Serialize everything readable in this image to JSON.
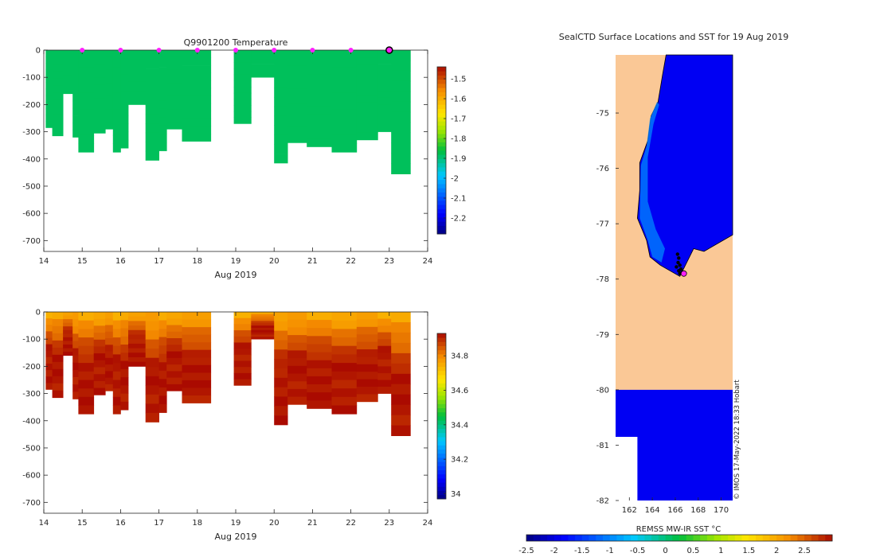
{
  "chart_data": [
    {
      "type": "heatmap",
      "panel": "temperature-section",
      "title": "Q9901200  Temperature",
      "xlabel": "Aug 2019",
      "ylabel": "",
      "xlim": [
        14,
        24
      ],
      "ylim": [
        -740,
        0
      ],
      "xticks": [
        14,
        15,
        16,
        17,
        18,
        19,
        20,
        21,
        22,
        23,
        24
      ],
      "yticks": [
        0,
        -100,
        -200,
        -300,
        -400,
        -500,
        -600,
        -700
      ],
      "ytick_labels": [
        "0",
        "-100",
        "-200",
        "-300",
        "-400",
        "-500",
        "-600",
        "-700"
      ],
      "colorbar": {
        "min": -2.28,
        "max": -1.44,
        "ticks": [
          -1.5,
          -1.6,
          -1.7,
          -1.8,
          -1.9,
          -2,
          -2.1,
          -2.2
        ],
        "tick_labels": [
          "-1.5",
          "-1.6",
          "-1.7",
          "-1.8",
          "-1.9",
          "-2",
          "-2.1",
          "-2.2"
        ]
      },
      "field_value": -1.88,
      "profiles": [
        {
          "x0": 14.05,
          "x1": 14.22,
          "top": 0,
          "bottom": -285
        },
        {
          "x0": 14.22,
          "x1": 14.5,
          "top": 0,
          "bottom": -315
        },
        {
          "x0": 14.5,
          "x1": 14.75,
          "top": 0,
          "bottom": -160
        },
        {
          "x0": 14.75,
          "x1": 14.9,
          "top": 0,
          "bottom": -320
        },
        {
          "x0": 14.9,
          "x1": 15.3,
          "top": 0,
          "bottom": -375
        },
        {
          "x0": 15.3,
          "x1": 15.6,
          "top": 0,
          "bottom": -305
        },
        {
          "x0": 15.6,
          "x1": 15.8,
          "top": 0,
          "bottom": -290
        },
        {
          "x0": 15.8,
          "x1": 16.0,
          "top": 0,
          "bottom": -375
        },
        {
          "x0": 16.0,
          "x1": 16.2,
          "top": 0,
          "bottom": -360
        },
        {
          "x0": 16.2,
          "x1": 16.65,
          "top": 0,
          "bottom": -200
        },
        {
          "x0": 16.65,
          "x1": 17.0,
          "top": 0,
          "bottom": -405
        },
        {
          "x0": 17.0,
          "x1": 17.2,
          "top": 0,
          "bottom": -370
        },
        {
          "x0": 17.2,
          "x1": 17.6,
          "top": 0,
          "bottom": -290
        },
        {
          "x0": 17.6,
          "x1": 18.35,
          "top": 0,
          "bottom": -335
        },
        {
          "x0": 18.95,
          "x1": 19.4,
          "top": 0,
          "bottom": -270
        },
        {
          "x0": 19.4,
          "x1": 20.0,
          "top": 0,
          "bottom": -100
        },
        {
          "x0": 20.0,
          "x1": 20.35,
          "top": 0,
          "bottom": -415
        },
        {
          "x0": 20.35,
          "x1": 20.85,
          "top": 0,
          "bottom": -340
        },
        {
          "x0": 20.85,
          "x1": 21.5,
          "top": 0,
          "bottom": -355
        },
        {
          "x0": 21.5,
          "x1": 22.15,
          "top": 0,
          "bottom": -375
        },
        {
          "x0": 22.15,
          "x1": 22.7,
          "top": 0,
          "bottom": -330
        },
        {
          "x0": 22.7,
          "x1": 23.05,
          "top": 0,
          "bottom": -300
        },
        {
          "x0": 23.05,
          "x1": 23.55,
          "top": 0,
          "bottom": -455
        }
      ],
      "surface_markers_x": [
        15,
        16,
        17,
        18,
        19,
        20,
        21,
        22
      ],
      "current_marker_x": 23,
      "marker_color": "#ff20ff"
    },
    {
      "type": "heatmap",
      "panel": "salinity-section",
      "title": "",
      "xlabel": "Aug 2019",
      "ylabel": "",
      "xlim": [
        14,
        24
      ],
      "ylim": [
        -740,
        0
      ],
      "xticks": [
        14,
        15,
        16,
        17,
        18,
        19,
        20,
        21,
        22,
        23,
        24
      ],
      "yticks": [
        0,
        -100,
        -200,
        -300,
        -400,
        -500,
        -600,
        -700
      ],
      "ytick_labels": [
        "0",
        "-100",
        "-200",
        "-300",
        "-400",
        "-500",
        "-600",
        "-700"
      ],
      "colorbar": {
        "min": 33.97,
        "max": 34.93,
        "ticks": [
          34.8,
          34.6,
          34.4,
          34.2,
          34
        ],
        "tick_labels": [
          "34.8",
          "34.6",
          "34.4",
          "34.2",
          "34"
        ]
      },
      "surface_value": 34.74,
      "deep_value": 34.9
    },
    {
      "type": "heatmap",
      "panel": "sst-map",
      "title": "SealCTD Surface Locations and SST for 19 Aug 2019",
      "xlabel": "REMSS MW-IR SST °C",
      "xlim": [
        160.8,
        171
      ],
      "ylim": [
        -82,
        -73.95
      ],
      "xticks": [
        162,
        164,
        166,
        168,
        170
      ],
      "xtick_labels": [
        "162",
        "164",
        "166",
        "168",
        "170"
      ],
      "yticks": [
        -75,
        -76,
        -77,
        -78,
        -79,
        -80,
        -81,
        -82
      ],
      "ytick_labels": [
        "-75",
        "-76",
        "-77",
        "-78",
        "-79",
        "-80",
        "-81",
        "-82"
      ],
      "colorbar": {
        "min": -2.5,
        "max": 3,
        "ticks": [
          -2.5,
          -2,
          -1.5,
          -1,
          -0.5,
          0,
          0.5,
          1,
          1.5,
          2,
          2.5
        ],
        "tick_labels": [
          "-2.5",
          "-2",
          "-1.5",
          "-1",
          "-0.5",
          "0",
          "0.5",
          "1",
          "1.5",
          "2",
          "2.5"
        ]
      },
      "ocean_sst": -1.9,
      "coastal_sst": -1.0,
      "land_color": "#fac896",
      "land_mask_lat": -80,
      "track": [
        [
          166.2,
          -77.55
        ],
        [
          166.3,
          -77.62
        ],
        [
          166.25,
          -77.7
        ],
        [
          166.4,
          -77.75
        ],
        [
          166.1,
          -77.78
        ],
        [
          166.5,
          -77.82
        ],
        [
          166.3,
          -77.85
        ],
        [
          166.6,
          -77.88
        ],
        [
          166.4,
          -77.9
        ],
        [
          166.7,
          -77.88
        ]
      ],
      "current_location": [
        166.75,
        -77.9
      ],
      "credit": "© IMOS 17-May-2022 18:33 Hobart"
    }
  ],
  "colors": {
    "axis": "#262626",
    "marker": "#ff20ff",
    "land": "#fac896",
    "ocean": "#0a3cb8"
  }
}
